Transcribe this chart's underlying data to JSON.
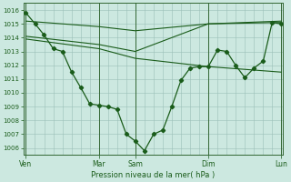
{
  "bg_color": "#cce8e0",
  "line_color": "#1a5c1a",
  "ylim": [
    1005.5,
    1016.5
  ],
  "yticks": [
    1006,
    1007,
    1008,
    1009,
    1010,
    1011,
    1012,
    1013,
    1014,
    1015,
    1016
  ],
  "xlabel": "Pression niveau de la mer( hPa )",
  "day_labels": [
    "Ven",
    "Mar",
    "Sam",
    "Dim",
    "Lun"
  ],
  "day_positions": [
    0.0,
    0.286,
    0.428,
    0.714,
    1.0
  ],
  "line1_x": [
    0.0,
    0.036,
    0.071,
    0.107,
    0.143,
    0.179,
    0.214,
    0.25,
    0.286,
    0.321,
    0.357,
    0.393,
    0.428,
    0.464,
    0.5,
    0.536,
    0.571,
    0.607,
    0.643,
    0.679,
    0.714,
    0.75,
    0.786,
    0.821,
    0.857,
    0.893,
    0.929,
    0.964,
    1.0
  ],
  "line1_y": [
    1015.8,
    1015.0,
    1014.2,
    1013.2,
    1013.0,
    1011.5,
    1010.4,
    1009.2,
    1009.1,
    1009.0,
    1008.8,
    1007.0,
    1006.5,
    1005.8,
    1007.0,
    1007.3,
    1009.0,
    1010.9,
    1011.8,
    1011.9,
    1011.9,
    1013.1,
    1013.0,
    1012.0,
    1011.1,
    1011.8,
    1012.3,
    1015.1,
    1015.0
  ],
  "line2_x": [
    0.0,
    0.286,
    0.428,
    0.714,
    1.0
  ],
  "line2_y": [
    1015.2,
    1014.8,
    1014.5,
    1015.0,
    1015.1
  ],
  "line3_x": [
    0.0,
    0.286,
    0.428,
    0.714,
    1.0
  ],
  "line3_y": [
    1014.1,
    1013.5,
    1013.0,
    1015.0,
    1015.2
  ],
  "line4_x": [
    0.0,
    0.286,
    0.428,
    0.714,
    1.0
  ],
  "line4_y": [
    1013.9,
    1013.2,
    1012.5,
    1011.9,
    1011.5
  ],
  "grid_color": "#9bbfb8",
  "spine_color": "#336633",
  "tick_color": "#1a5c1a"
}
